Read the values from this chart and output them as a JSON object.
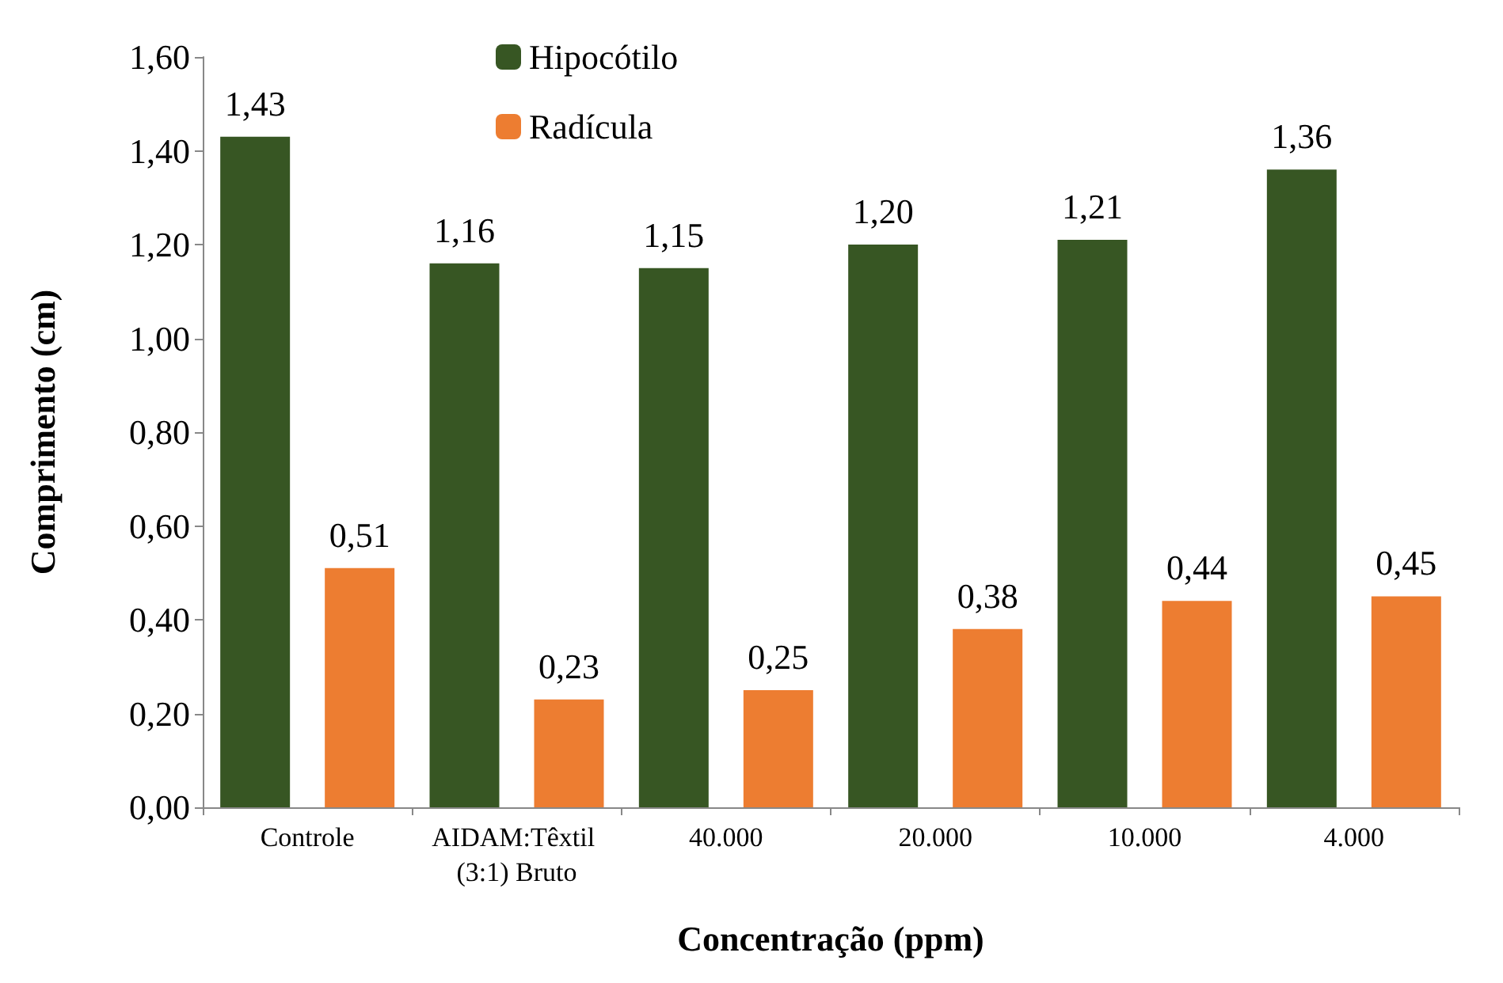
{
  "chart_data": {
    "type": "bar",
    "xlabel": "Concentração (ppm)",
    "ylabel": "Comprimento (cm)",
    "categories": [
      "Controle",
      "AIDAM:Têxtil (3:1) Bruto",
      "40.000",
      "20.000",
      "10.000",
      "4.000"
    ],
    "series": [
      {
        "name": "Hipocótilo",
        "color": "#375623",
        "values": [
          1.43,
          1.16,
          1.15,
          1.2,
          1.21,
          1.36
        ],
        "value_labels": [
          "1,43",
          "1,16",
          "1,15",
          "1,20",
          "1,21",
          "1,36"
        ]
      },
      {
        "name": "Radícula",
        "color": "#ed7d31",
        "values": [
          0.51,
          0.23,
          0.25,
          0.38,
          0.44,
          0.45
        ],
        "value_labels": [
          "0,51",
          "0,23",
          "0,25",
          "0,38",
          "0,44",
          "0,45"
        ]
      }
    ],
    "ylim": [
      0,
      1.6
    ],
    "yticks": [
      {
        "value": 0,
        "label": "0,00"
      },
      {
        "value": 0.2,
        "label": "0,20"
      },
      {
        "value": 0.4,
        "label": "0,40"
      },
      {
        "value": 0.6,
        "label": "0,60"
      },
      {
        "value": 0.8,
        "label": "0,80"
      },
      {
        "value": 1,
        "label": "1,00"
      },
      {
        "value": 1.2,
        "label": "1,20"
      },
      {
        "value": 1.4,
        "label": "1,40"
      },
      {
        "value": 1.6,
        "label": "1,60"
      }
    ],
    "grid": false,
    "legend": "top"
  }
}
